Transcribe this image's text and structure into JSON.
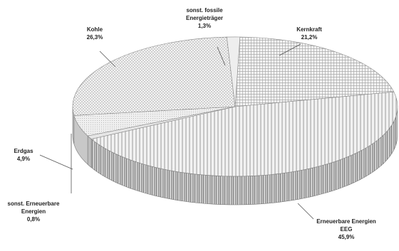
{
  "chart_data": {
    "type": "pie",
    "title": "",
    "slices": [
      {
        "name": "Kernkraft",
        "value_label": "21,2%",
        "value": 21.2,
        "pattern": "grid"
      },
      {
        "name": "Erneuerbare Energien EEG",
        "value_label": "45,9%",
        "value": 45.9,
        "pattern": "vertical"
      },
      {
        "name": "sonst. Erneuerbare Energien",
        "value_label": "0,8%",
        "value": 0.8,
        "pattern": "solid-light"
      },
      {
        "name": "Erdgas",
        "value_label": "4,9%",
        "value": 4.9,
        "pattern": "fine-dots"
      },
      {
        "name": "Kohle",
        "value_label": "26,3%",
        "value": 26.3,
        "pattern": "dots"
      },
      {
        "name": "sonst. fossile Energieträger",
        "value_label": "1,3%",
        "value": 1.3,
        "pattern": "solid-lighter"
      }
    ],
    "labels": {
      "kernkraft": [
        "Kernkraft",
        "21,2%"
      ],
      "eeg": [
        "Erneuerbare Energien",
        "EEG",
        "45,9%"
      ],
      "sonst_ee": [
        "sonst. Erneuerbare",
        "Energien",
        "0,8%"
      ],
      "erdgas": [
        "Erdgas",
        "4,9%"
      ],
      "kohle": [
        "Kohle",
        "26,3%"
      ],
      "sonst_fossil": [
        "sonst. fossile",
        "Energieträger",
        "1,3%"
      ]
    },
    "style": "3d-tilted-pie, monochrome hatch patterns",
    "legend": "none"
  }
}
